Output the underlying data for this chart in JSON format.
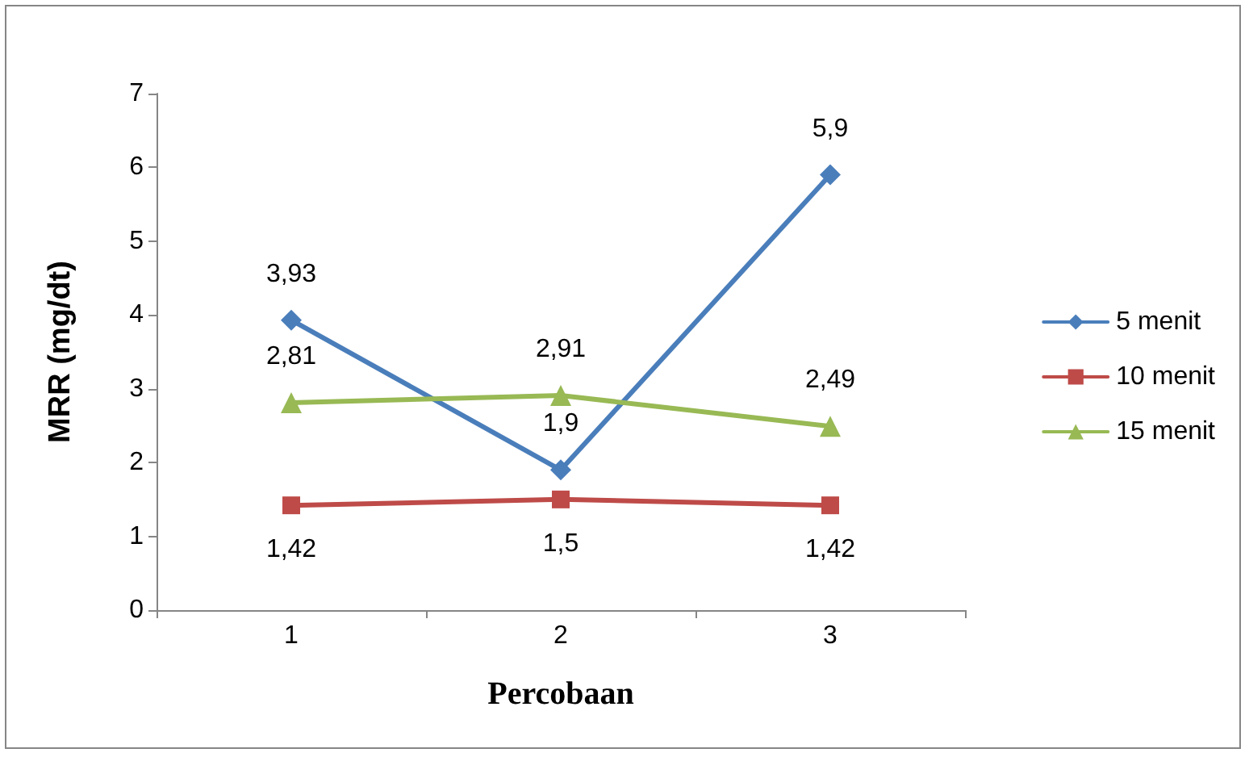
{
  "chart_data": {
    "type": "line",
    "xlabel": "Percobaan",
    "ylabel": "MRR (mg/dt)",
    "categories": [
      "1",
      "2",
      "3"
    ],
    "series": [
      {
        "name": "5 menit",
        "color": "#4a7ebb",
        "marker": "diamond",
        "values": [
          3.93,
          1.9,
          5.9
        ],
        "value_labels": [
          "3,93",
          "1,9",
          "5,9"
        ]
      },
      {
        "name": "10 menit",
        "color": "#be4b48",
        "marker": "square",
        "values": [
          1.42,
          1.5,
          1.42
        ],
        "value_labels": [
          "1,42",
          "1,5",
          "1,42"
        ]
      },
      {
        "name": "15 menit",
        "color": "#98b954",
        "marker": "triangle",
        "values": [
          2.81,
          2.91,
          2.49
        ],
        "value_labels": [
          "2,81",
          "2,91",
          "2,49"
        ]
      }
    ],
    "ylim": [
      0,
      7
    ],
    "yticks": [
      0,
      1,
      2,
      3,
      4,
      5,
      6,
      7
    ],
    "grid": false,
    "legend": "right",
    "line_style": "solid"
  }
}
